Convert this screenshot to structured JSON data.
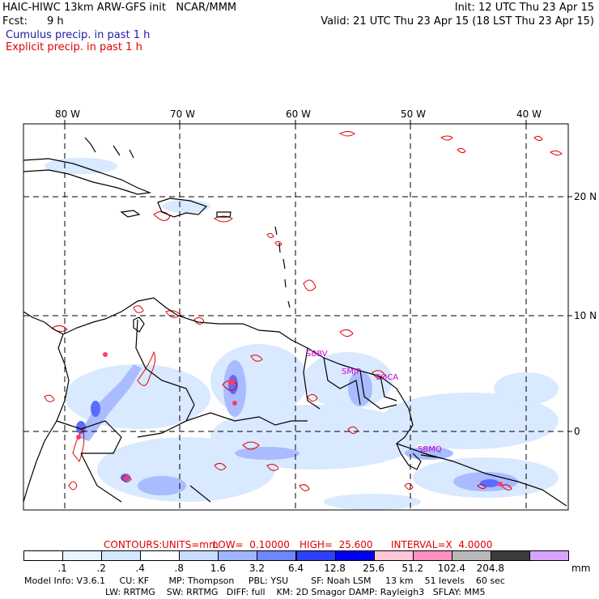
{
  "header": {
    "model_line": "HAIC-HIWC 13km ARW-GFS init   NCAR/MMM",
    "init_line": "Init: 12 UTC Thu 23 Apr 15",
    "fcst_label": "Fcst:",
    "fcst_value": "9 h",
    "valid_line": "Valid: 21 UTC Thu 23 Apr 15 (18 LST Thu 23 Apr 15)",
    "legend_cumulus": "Cumulus precip. in past 1 h",
    "legend_explicit": "Explicit precip. in past 1 h"
  },
  "colors": {
    "cumulus_text": "#1a1aa6",
    "explicit_text": "#e00000",
    "station_label": "#d000d0",
    "coast": "#000000",
    "grid": "#000000"
  },
  "map": {
    "lon_labels": [
      "80 W",
      "70 W",
      "60 W",
      "50 W",
      "40 W"
    ],
    "lat_labels": [
      "20 N",
      "10 N",
      "0"
    ],
    "stations": [
      "SBBV",
      "SMJP",
      "SOCA",
      "SBMQ"
    ]
  },
  "contour_info": {
    "contours_label": "CONTOURS:",
    "units": "UNITS=mm",
    "low": "LOW=  0.10000",
    "high": "HIGH=  25.600",
    "interval": "INTERVAL=X  4.0000"
  },
  "colorbar": {
    "unit": "mm",
    "labels": [
      ".1",
      ".2",
      ".4",
      ".8",
      "1.6",
      "3.2",
      "6.4",
      "12.8",
      "25.6",
      "51.2",
      "102.4",
      "204.8"
    ],
    "colors": [
      "#ffffff",
      "#eaf4ff",
      "#d3e7ff",
      "#ffffff",
      "#c9dcff",
      "#9fb6ff",
      "#6f86ff",
      "#2f3fff",
      "#0000ee",
      "#ffc8d8",
      "#ff90c0",
      "#b8b8b8",
      "#3c3c3c",
      "#d8a4ff"
    ]
  },
  "footer": {
    "line1": "Model Info: V3.6.1     CU: KF       MP: Thompson     PBL: YSU        SF: Noah LSM     13 km    51 levels    60 sec",
    "line2": "LW: RRTMG    SW: RRTMG   DIFF: full    KM: 2D Smagor DAMP: Rayleigh3   SFLAY: MM5"
  }
}
